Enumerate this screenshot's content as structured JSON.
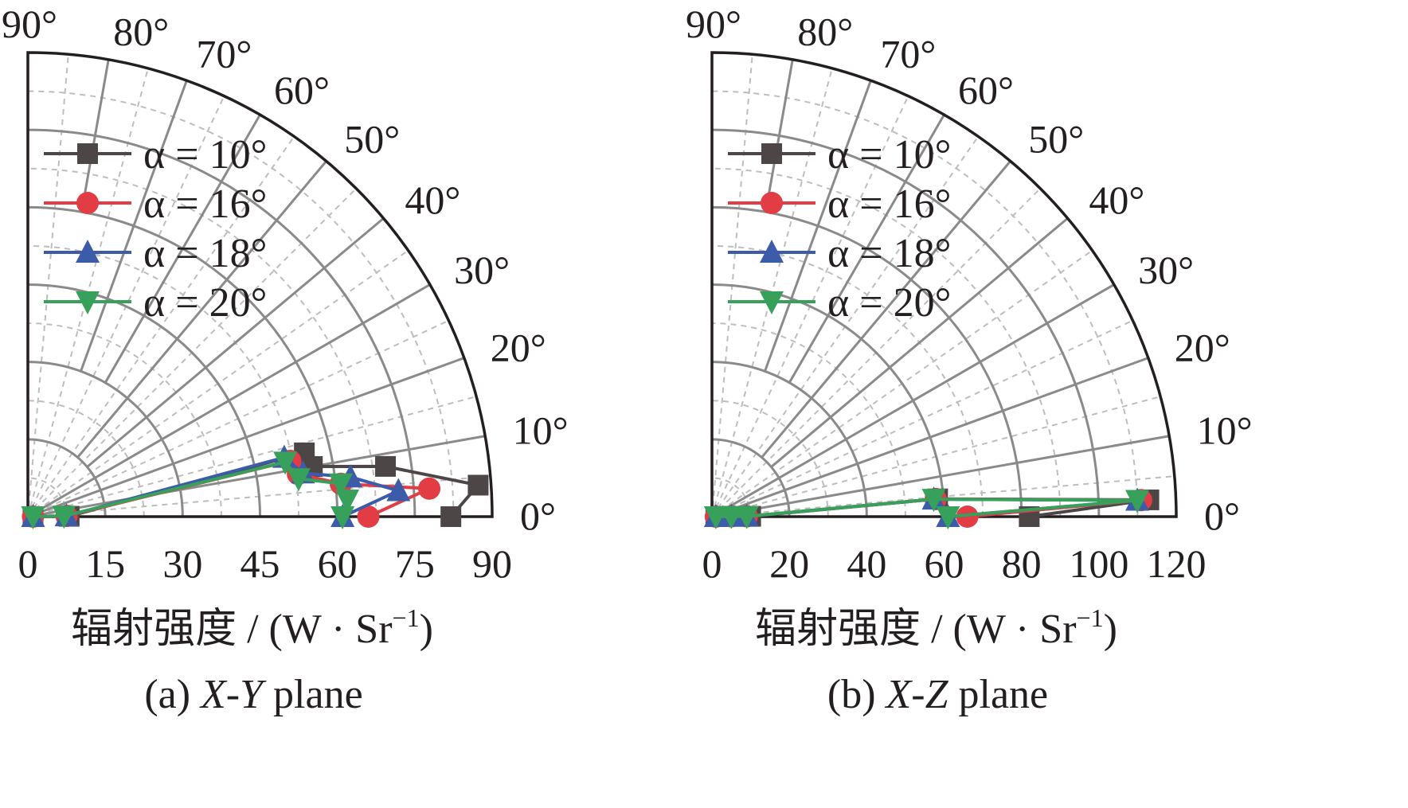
{
  "chart_data": [
    {
      "type": "polar",
      "caption_prefix": "(a) ",
      "caption_italic": "X-Y",
      "caption_suffix": " plane",
      "xlabel": "辐射强度 / (W · Sr",
      "xlabel_sup": "−1",
      "xlabel_close": ")",
      "radial_range": [
        0,
        90
      ],
      "radial_ticks": [
        "0",
        "15",
        "30",
        "45",
        "60",
        "75",
        "90"
      ],
      "angle_range_deg": [
        0,
        90
      ],
      "angle_ticks": [
        "0°",
        "10°",
        "20°",
        "30°",
        "40°",
        "50°",
        "60°",
        "70°",
        "80°",
        "90°"
      ],
      "grid": true,
      "legend_position": "top-left",
      "series": [
        {
          "name": "α = 10°",
          "color": "#4d4646",
          "marker": "square",
          "points": [
            [
              0,
              82
            ],
            [
              4,
              87.5
            ],
            [
              8,
              70
            ],
            [
              10,
              56
            ],
            [
              13,
              55
            ],
            [
              0.5,
              8
            ],
            [
              0,
              1
            ]
          ]
        },
        {
          "name": "α = 16°",
          "color": "#e23d45",
          "marker": "circle",
          "points": [
            [
              0,
              66
            ],
            [
              4,
              78
            ],
            [
              6,
              61
            ],
            [
              9,
              53
            ],
            [
              12,
              52
            ],
            [
              1,
              7.5
            ],
            [
              0,
              1
            ]
          ]
        },
        {
          "name": "α = 18°",
          "color": "#3c5ca9",
          "marker": "triangle-up",
          "points": [
            [
              0,
              61
            ],
            [
              4,
              72
            ],
            [
              7,
              63
            ],
            [
              9,
              54
            ],
            [
              13,
              51
            ],
            [
              1,
              7.5
            ],
            [
              0,
              1
            ]
          ]
        },
        {
          "name": "α = 20°",
          "color": "#37a05a",
          "marker": "triangle-down",
          "points": [
            [
              0,
              61
            ],
            [
              3,
              62
            ],
            [
              6,
              61
            ],
            [
              8,
              53
            ],
            [
              12,
              51
            ],
            [
              1,
              7
            ],
            [
              0,
              1
            ]
          ]
        }
      ]
    },
    {
      "type": "polar",
      "caption_prefix": "(b) ",
      "caption_italic": "X-Z",
      "caption_suffix": " plane",
      "xlabel": "辐射强度 / (W · Sr",
      "xlabel_sup": "−1",
      "xlabel_close": ")",
      "radial_range": [
        0,
        120
      ],
      "radial_ticks": [
        "0",
        "20",
        "40",
        "60",
        "80",
        "100",
        "120"
      ],
      "angle_range_deg": [
        0,
        90
      ],
      "angle_ticks": [
        "0°",
        "10°",
        "20°",
        "30°",
        "40°",
        "50°",
        "60°",
        "70°",
        "80°",
        "90°"
      ],
      "grid": true,
      "legend_position": "top-left",
      "series": [
        {
          "name": "α = 10°",
          "color": "#4d4646",
          "marker": "square",
          "points": [
            [
              0,
              82
            ],
            [
              2.2,
              113
            ],
            [
              4.5,
              58.5
            ],
            [
              0.5,
              10
            ],
            [
              1,
              5
            ],
            [
              0,
              1
            ]
          ]
        },
        {
          "name": "α = 16°",
          "color": "#e23d45",
          "marker": "circle",
          "points": [
            [
              0,
              66
            ],
            [
              2.2,
              111
            ],
            [
              4.5,
              58
            ],
            [
              0.5,
              9
            ],
            [
              1,
              5
            ],
            [
              0,
              1
            ]
          ]
        },
        {
          "name": "α = 18°",
          "color": "#3c5ca9",
          "marker": "triangle-up",
          "points": [
            [
              0,
              61
            ],
            [
              2.2,
              110
            ],
            [
              4.5,
              57.5
            ],
            [
              0.5,
              9
            ],
            [
              1,
              5
            ],
            [
              0,
              1
            ]
          ]
        },
        {
          "name": "α = 20°",
          "color": "#37a05a",
          "marker": "triangle-down",
          "points": [
            [
              0,
              61
            ],
            [
              2.2,
              110
            ],
            [
              4.5,
              57.5
            ],
            [
              0.5,
              9
            ],
            [
              1,
              5
            ],
            [
              0,
              1
            ]
          ]
        }
      ]
    }
  ]
}
